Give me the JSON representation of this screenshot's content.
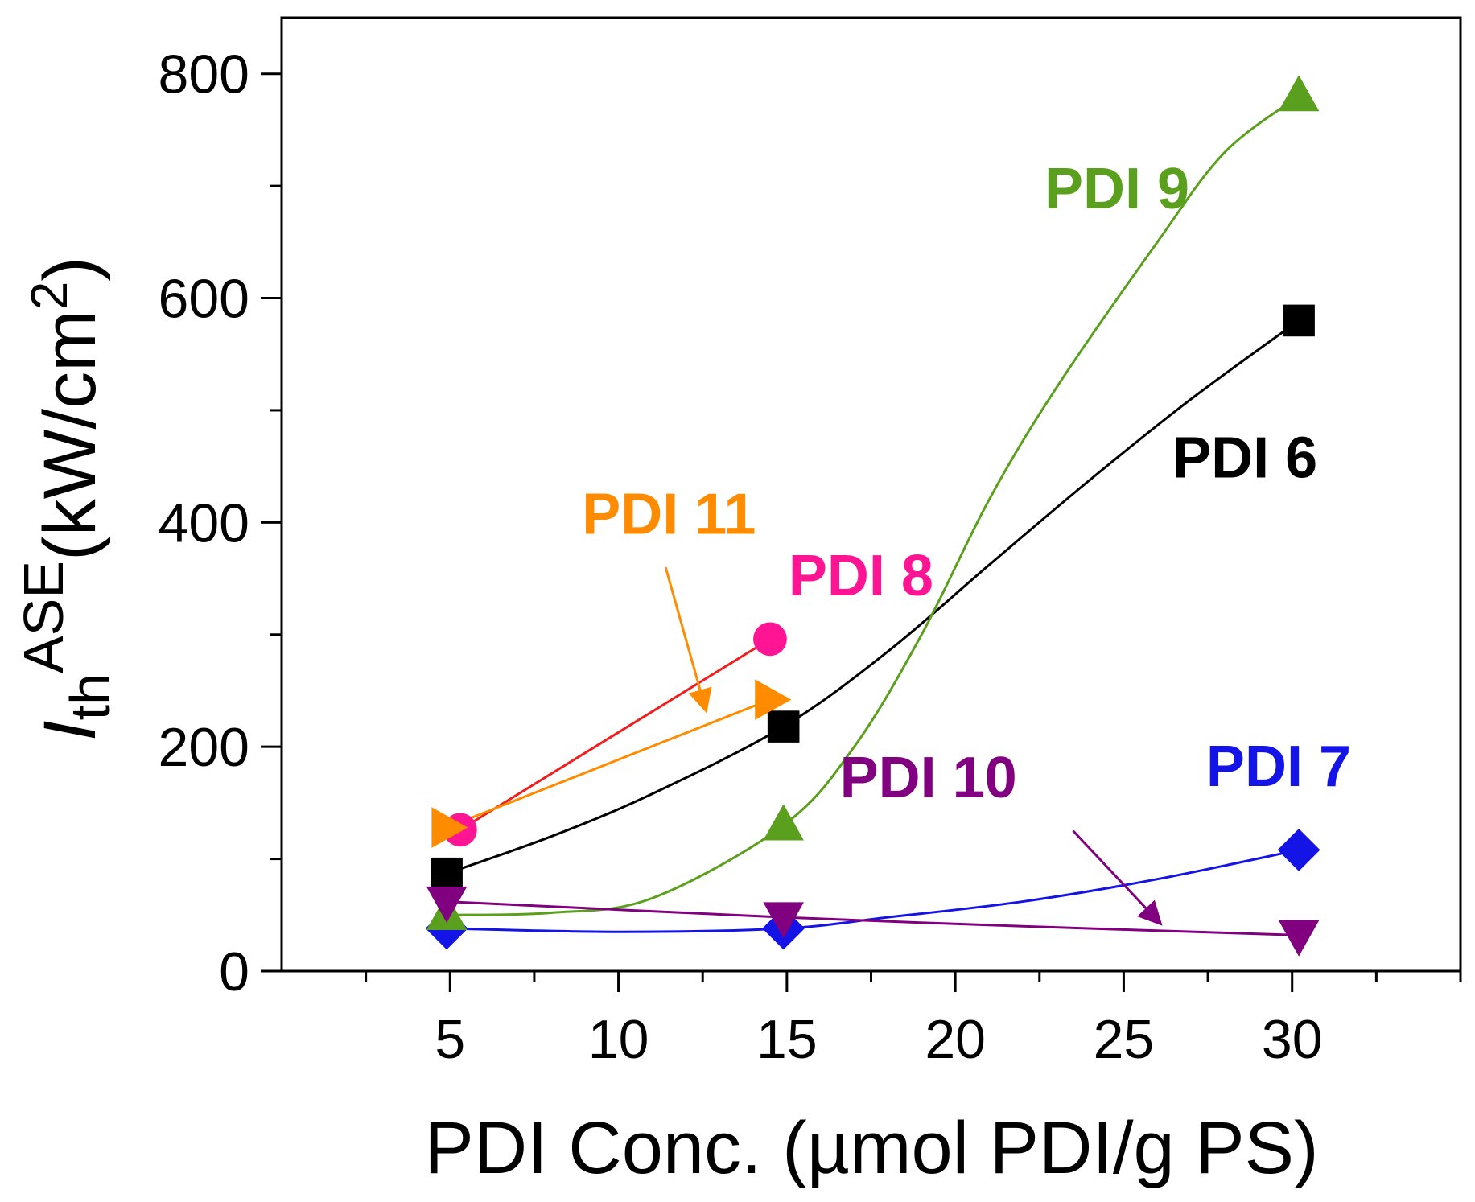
{
  "chart_data": {
    "type": "line",
    "xlabel": "PDI Conc. (µmol PDI/g PS)",
    "ylabel": {
      "main": "I",
      "sub": "th",
      "sup": "ASE",
      "units": "(kW/cm",
      "units_sup": "2",
      "units_close": ")"
    },
    "xlim": [
      0,
      35
    ],
    "ylim": [
      0,
      850
    ],
    "x_ticks": [
      5,
      10,
      15,
      20,
      25,
      30
    ],
    "y_ticks": [
      0,
      200,
      400,
      600,
      800
    ],
    "series": [
      {
        "name": "PDI 6",
        "color": "#000000",
        "marker": "square",
        "x": [
          4.9,
          14.9,
          30.2
        ],
        "y": [
          87,
          218,
          580
        ],
        "curve": [
          [
            4.9,
            87
          ],
          [
            8,
            120
          ],
          [
            11,
            158
          ],
          [
            14.9,
            218
          ],
          [
            18,
            285
          ],
          [
            21,
            362
          ],
          [
            24,
            438
          ],
          [
            27,
            510
          ],
          [
            30.2,
            580
          ]
        ]
      },
      {
        "name": "PDI 7",
        "color": "#1414e6",
        "marker": "diamond",
        "x": [
          4.9,
          14.9,
          30.2
        ],
        "y": [
          38,
          38,
          108
        ],
        "curve": [
          [
            4.9,
            38
          ],
          [
            10,
            35
          ],
          [
            14.9,
            38
          ],
          [
            18,
            48
          ],
          [
            22,
            62
          ],
          [
            26,
            82
          ],
          [
            30.2,
            108
          ]
        ]
      },
      {
        "name": "PDI 8",
        "color": "#ff1493",
        "line_color": "#f01e1e",
        "marker": "circle",
        "x": [
          5.3,
          14.5
        ],
        "y": [
          126,
          296
        ],
        "curve": [
          [
            5.3,
            126
          ],
          [
            14.5,
            296
          ]
        ]
      },
      {
        "name": "PDI 9",
        "color": "#5aa01e",
        "marker": "triangle-up",
        "x": [
          4.9,
          14.9,
          30.2
        ],
        "y": [
          50,
          130,
          780
        ],
        "curve": [
          [
            4.9,
            50
          ],
          [
            8,
            52
          ],
          [
            11,
            65
          ],
          [
            14.9,
            130
          ],
          [
            17,
            200
          ],
          [
            19,
            300
          ],
          [
            21,
            420
          ],
          [
            23,
            520
          ],
          [
            26,
            650
          ],
          [
            28,
            730
          ],
          [
            30.2,
            780
          ]
        ]
      },
      {
        "name": "PDI 10",
        "color": "#800080",
        "marker": "triangle-down",
        "x": [
          4.9,
          14.9,
          30.2
        ],
        "y": [
          62,
          48,
          32
        ],
        "curve": [
          [
            4.9,
            62
          ],
          [
            14.9,
            48
          ],
          [
            22,
            40
          ],
          [
            30.2,
            32
          ]
        ]
      },
      {
        "name": "PDI 11",
        "color": "#ff8c00",
        "marker": "triangle-right",
        "x": [
          4.9,
          14.5
        ],
        "y": [
          128,
          242
        ],
        "curve": [
          [
            4.9,
            128
          ],
          [
            14.5,
            242
          ]
        ]
      }
    ],
    "annotations": [
      {
        "text": "PDI 9",
        "color": "#5aa01e",
        "x": 24.8,
        "y": 680
      },
      {
        "text": "PDI 6",
        "color": "#000000",
        "x": 28.6,
        "y": 440
      },
      {
        "text": "PDI 11",
        "color": "#ff8c00",
        "x": 11.5,
        "y": 390
      },
      {
        "text": "PDI 8",
        "color": "#ff1493",
        "x": 17.2,
        "y": 335
      },
      {
        "text": "PDI 10",
        "color": "#800080",
        "x": 19.2,
        "y": 155
      },
      {
        "text": "PDI 7",
        "color": "#1414e6",
        "x": 29.6,
        "y": 165
      }
    ],
    "arrows": [
      {
        "series": "PDI 11",
        "color": "#ff8c00",
        "from": [
          11.4,
          360
        ],
        "to": [
          12.6,
          232
        ]
      },
      {
        "series": "PDI 10",
        "color": "#800080",
        "from": [
          23.5,
          125
        ],
        "to": [
          26.1,
          42
        ]
      }
    ]
  }
}
